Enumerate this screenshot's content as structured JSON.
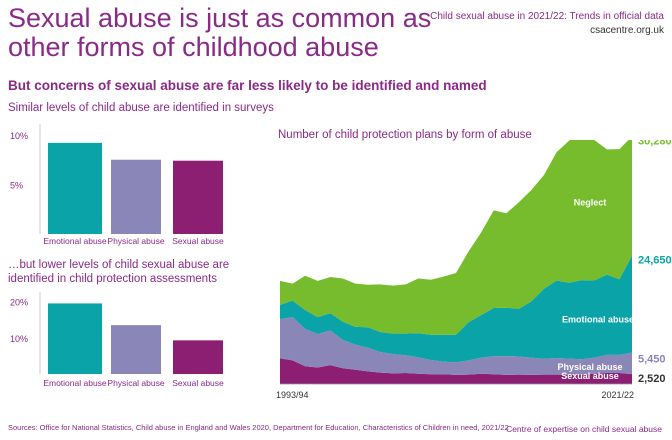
{
  "header": {
    "title_line1": "Sexual abuse is just as common as",
    "title_line2": "other forms of childhood abuse",
    "source_line": "Child sexual abuse in 2021/22: Trends in official data",
    "url": "csacentre.org.uk"
  },
  "subtitle": "But concerns of sexual abuse are far less likely to be identified and named",
  "sections": {
    "surveys_label": "Similar levels of child abuse are identified in surveys",
    "assessments_label_line1": "…but lower levels of child sexual abuse are",
    "assessments_label_line2": "identified in child protection assessments"
  },
  "colors": {
    "emotional": "#0aa3a8",
    "physical": "#8b86b8",
    "sexual": "#8c1f72",
    "neglect": "#76bc2c",
    "accent": "#8a2a87"
  },
  "chart_data": [
    {
      "type": "bar",
      "categories": [
        "Emotional abuse",
        "Physical abuse",
        "Sexual abuse"
      ],
      "values": [
        9.2,
        7.5,
        7.4
      ],
      "yticks": [
        "10%",
        "5%"
      ],
      "ytick_values": [
        10,
        5
      ],
      "ylim": [
        0,
        10.5
      ]
    },
    {
      "type": "bar",
      "categories": [
        "Emotional abuse",
        "Physical abuse",
        "Sexual abuse"
      ],
      "values": [
        19.5,
        13.5,
        9.3
      ],
      "yticks": [
        "20%",
        "10%"
      ],
      "ytick_values": [
        20,
        10
      ],
      "ylim": [
        0,
        21
      ]
    },
    {
      "type": "area",
      "title": "Number of child protection plans by form of abuse",
      "x_start_label": "1993/94",
      "x_end_label": "2021/22",
      "x": [
        "1993/94",
        "1994/95",
        "1995/96",
        "1996/97",
        "1997/98",
        "1998/99",
        "1999/00",
        "2000/01",
        "2001/02",
        "2002/03",
        "2003/04",
        "2004/05",
        "2005/06",
        "2006/07",
        "2007/08",
        "2008/09",
        "2009/10",
        "2010/11",
        "2011/12",
        "2012/13",
        "2013/14",
        "2014/15",
        "2015/16",
        "2016/17",
        "2017/18",
        "2018/19",
        "2019/20",
        "2020/21",
        "2021/22"
      ],
      "ylim": [
        0,
        62000
      ],
      "stack_order": [
        "Sexual abuse",
        "Physical abuse",
        "Emotional abuse",
        "Neglect"
      ],
      "series": [
        {
          "name": "Sexual abuse",
          "color_key": "sexual",
          "end_label": "2,520",
          "values": [
            6500,
            6000,
            4500,
            4200,
            4800,
            4000,
            3600,
            3200,
            2900,
            2700,
            2800,
            2600,
            2500,
            2500,
            2300,
            2400,
            2600,
            2500,
            2300,
            2400,
            2300,
            2400,
            2400,
            2350,
            2400,
            2600,
            2800,
            2800,
            2520
          ]
        },
        {
          "name": "Physical abuse",
          "color_key": "physical",
          "end_label": "5,450",
          "values": [
            10000,
            11000,
            9500,
            8500,
            8800,
            7200,
            6400,
            6000,
            5200,
            4900,
            4500,
            4200,
            3600,
            3200,
            3200,
            3600,
            4100,
            4600,
            4800,
            4600,
            4400,
            4000,
            4200,
            4100,
            3900,
            4100,
            4600,
            4600,
            5450
          ]
        },
        {
          "name": "Emotional abuse",
          "color_key": "emotional",
          "end_label": "24,650",
          "values": [
            3600,
            4200,
            4800,
            4300,
            4400,
            4600,
            4500,
            5200,
            5100,
            5200,
            5500,
            6100,
            6400,
            6800,
            7000,
            9700,
            10800,
            12200,
            12300,
            12100,
            14300,
            17800,
            19700,
            19300,
            20100,
            19600,
            20400,
            19200,
            24650
          ]
        },
        {
          "name": "Neglect",
          "color_key": "neglect",
          "end_label": "30,280",
          "values": [
            6100,
            4300,
            8700,
            9200,
            9200,
            11000,
            11000,
            10800,
            12100,
            12200,
            12500,
            13900,
            14000,
            14800,
            15700,
            18000,
            21000,
            24800,
            24000,
            27100,
            28300,
            28900,
            32600,
            36100,
            38100,
            35700,
            31800,
            33100,
            30280
          ]
        }
      ]
    }
  ],
  "footer": {
    "sources": "Sources: Office for National Statistics, Child abuse in England and Wales 2020, Department for Education, Characteristics of Children in need, 2021/22",
    "credit": "Centre of expertise on child sexual abuse"
  }
}
